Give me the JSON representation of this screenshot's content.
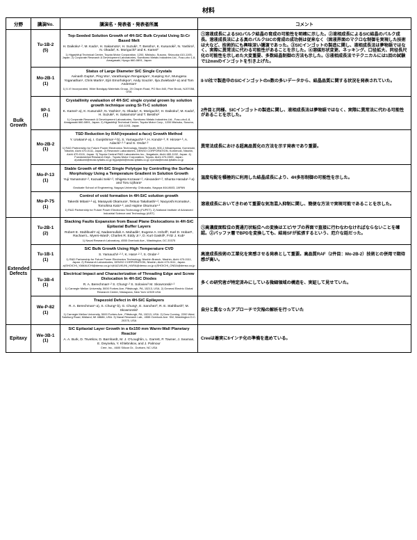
{
  "pageTitle": "材料",
  "headers": {
    "field": "分野",
    "id": "講演No.",
    "content": "講演名・発表者・発表者所属",
    "comment": "コメント"
  },
  "sections": [
    {
      "field": "Bulk Growth",
      "rows": [
        {
          "id": "Tu-1B-2\n(5)",
          "title": "Top-Seeded Solution Growth of 4H-SiC Bulk Crystal Using Si-Cr Based Melt",
          "authors": "H. Daikoku¹·², M. Kado¹, H. Sakamoto¹, H. Suzuki¹, T. Bessho¹, K. Kusunoki², N. Yashiro², N. Okada², K. Moriguchi² and K. Kamei²",
          "affils": "1) Higashifuji Technical Center, Toyota Motor Corporation, 1200, Mishuku, Susono, Shizuoka 410-1193, Japan. 2) Corporate Research & Development Laboratories, Sumitomo Metals Industries Ltd., Fuso-cho 1-8, Amagasaki, Hyogo 660-0891, Japan",
          "comment": "①溶液成長によるSIGバルク結晶の育成の可能性を明確に示した。②液相成長によるSIC結晶のバルク成長。溶液成長法による真のバルクSICの育成の成功例は従来なく（固液界面のマクロな制御を実現した技術は大など、技術的にも興味深い講演であった。③SICインゴットの製造に関し、液相成長法は夢物語ではなく、実際に異常法に代わる可能性があることを示した。④溶媒形状変更、ネッキング、口径拡大、同径長尺化の可能性を示しめた大変重要、多数結晶制御の方法も示した。⑤液相成長法でテクニカルには1回の試験で12mmのインゴットを引き上げた。"
        },
        {
          "id": "Mo-2B-1\n(1)",
          "title": "Status of Large Diameter SiC Single Crystals",
          "authors": "Avinash Gupta¹, Ping Wu¹, Varatharajan Rengarajan¹, Xueping Xu¹, Murugesu Yoganathan¹, Chris Martin¹, Ejiri Emorhokpor¹, Andy Souzis¹, Ilya Zwieback¹·a) and Tom Anderson¹",
          "affils": "1) II-VI Incorporated, Wide Bandgap Materials Group, 20 Chapin Road, PO Box 840, Pine Brook, NJ07058, USA",
          "comment": "II-VI社で製造中のSICインゴットのn数の多いデータから、結晶品質に関する状況を発表されていた。"
        },
        {
          "id": "9P-1\n(1)",
          "title": "Crystallinity evaluation of 4H-SiC single crystal grown by solution growth technique using Si-Ti-C solution",
          "authors": "K. Kamei¹·a), K. Kusunoki¹, N. Yashiro¹, N. Okada¹, K. Moriguchi¹, H. Daikoku², M. Kado², H. Suzuki², H. Sakamoto² and T. Bessho²",
          "affils": "1) Corporate Research & Development Laboratories, Sumitomo Metals Industries Ltd., Fuso-cho1-8, Amagasaki 660-0891, Japan. 2) Higashifuji Technical Center, Toyota Motor Corp., 1200 Mishuku, Susono, 410-1193, Japan",
          "comment": "2件目と同様、SICインゴットの製造に関し、液相成長法は夢物語ではなく、実際に異常法に代わる可能性があることを示した。"
        },
        {
          "id": "Mo-2B-2\n(1)",
          "title": "TSD Reduction by RAF(repeated a-face) Growth Method",
          "authors": "Y. Urakami¹·a), I. Gunjishima¹·²·b), S. Yamaguchi¹·³, H. Kondo¹·³, F. Hirose¹·³, A. Adachi¹·²·³ and S. Onda¹·²",
          "affils": "1) R&D Partnership for Future Power Electronics Technology, Nisshin South, 500-1 Minamiyama, Komenoki, Nisshin, Aichi 470-0111, Japan. 2) Research Laboratories, DENSO CORPORATION, Komenoki, Nisshin, Aichi 470-0111, Japan. 3) Toyota Central R&D Laboratories Inc., Nagakute, Aichi 480-1192, Japan. 4) Fundamental Research Dept., Toyota Motor Corporation, Toyota, Aichi 470-0309, Japan. a)urakami@mosk.tytlabs.co.jp b)gunjishi@mosk.tytlabs.co.jp c)onda@mosk.tytlabs.co.jp",
          "comment": "異常法成長における超高品質化の方法を示す発表であり重要。"
        },
        {
          "id": "Mo-P-13\n(1)",
          "title": "Stable Growth of 4H-SiC Single Polytype by Controlling the Surface Morphology Using a Temperature Gradient in Solution Growth",
          "authors": "Yuji Yamamoto¹·², Kazuaki Seki¹·², Shigeta Kozawa¹·², Alexander¹·², Shunta Harada¹·²·a) and Toru Ujihara¹",
          "affils": "Graduate School of Engineering, Nagoya University, Chikusaku, Nagoya 464-8603, JAPAN",
          "comment": "温度勾配を積極的に利用した結晶成長により、4H多形制御の可能性を示した。"
        },
        {
          "id": "Mo-P-75\n(1)",
          "title": "Control of void formation in 4H-SiC solution growth",
          "authors": "Takeshi Mitani¹·²·a), Masayuki Okamura¹, Tetsuo Takahashi¹·², Naoyoshi Komatsu¹, Tomohisa Kato¹·², and Hajime Okumura¹·²",
          "affils": "1) R&D Partnership for Future Power Electronics Technology (FUPET). 2) National Institute of Advanced Industrial Science and Technology (AIST)",
          "comment": "溶液成長においてきわめて重要な気泡混入抑制に関し、簡便な方法で実現可能であることを示した。"
        }
      ]
    },
    {
      "field": "Extended Defects",
      "rows": [
        {
          "id": "Tu-2B-1\n(2)",
          "title": "Stacking Faults Expansion from Basal Plane Dislocations in 4H-SiC Epitaxial Buffer Layers",
          "authors": "Robert E. Stahlbush¹·a), Nadeemullah A. Mahadik¹, Eugene A. Imhoff¹, Karl D. Hobart¹, Rachael L. Myers-Ward¹, Charles R. Eddy Jr.¹, D. Kurt Gaskill¹, Fritz J. Kub¹",
          "affils": "1) Naval Research Laboratory, 4555 Overlook Ave., Washington, DC 20375",
          "comment": "①高濃度面粒位の貫通刃状転位への変換はエピ/サブの界面で直接に行わなわなければならないことを確認。②バッファ層でBPDを変換しても、結局SFが拡張するという、厄介な話だった。"
        },
        {
          "id": "Tu-1B-1\n(1)",
          "title": "SiC Bulk Growth Using High Temperature CVD",
          "authors": "S. Yamauchi¹·²·³, K. Hara¹·²·³, S. Onda¹·²",
          "affils": "1) R&D Partnership for Future Power Electronics Technology, Nisshin Branch, Nisshin, Aichi 470-0111, Japan. 2) Research Laboratories, DENSO CORPORATION, Nisshin, Aichi 470-0111, Japan. a)SHOICHI_YAMAUCHI@denso.co.jp b)KAZUKUNI_HARA@denso.co.jp c)SHOICHI_ONDA@denso.co.jp",
          "comment": "高速成長技術の工業化を実感させる発表として重要。高品質RAF（2件目：Mo-2B-2）技術との併用で期待感が高い。"
        },
        {
          "id": "Tu-3B-4\n(1)",
          "title": "Electrical Impact and Characterization of Threading Edge and Screw Dislocation In 4H-SiC Diodes",
          "authors": "R. A. Berechman¹·² S. Chung¹·² S. Soloviev³ M. Skowronski¹·²",
          "affils": "1) Carnegie Mellon University, 5000 Forbes Ave, Pittsburgh, PA, 15213, USA. 2) General Electric Global Research Center, Niskayuna, New York 12309 USA",
          "comment": "多くの研究者が特定済みにしている微細領域の構造を、実証して見せていた。"
        },
        {
          "id": "We-P-82\n(1)",
          "title": "Trapezoid Defect in 4H-SiC Epilayers",
          "authors": "R. A. Berechman¹·a), S. Chung¹·b), G. Chung¹, E. Sanchez², R. E. Stahlbush³, M. Skowronski¹",
          "affils": "1) Carnegie Mellon University, 5000 Forbes Ave., Pittsburgh, PA, 15213, USA. 2) Dow Corning, 2200 West Salzburg Road, Midland, MI 48686, USA. 3) Naval Research Lab., 4555 Overlook Ave. SW, Washington D.C. 20375, USA",
          "comment": "自分と異なったアプローチで欠陥の解析を行っていた"
        }
      ]
    },
    {
      "field": "Epitaxy",
      "rows": [
        {
          "id": "We-3B-1\n(1)",
          "title": "SiC Epitaxial Layer Growth in a 6x150 mm Warm-Wall Planetary Reactor",
          "authors": "A. A. Burk, D. Tsvetkov, D. Barnhardt, M. J. O'Loughlin, L. Garrett, P. Towner, J. Seaman, E. Deyneka, Y. Khlebnikov, and J. Palmour",
          "affils": "Cree, Inc., 4600 Silicon Dr., Durham, NC USA",
          "comment": "Creeは着実に6インチ化の準備を進めている。"
        }
      ]
    }
  ]
}
